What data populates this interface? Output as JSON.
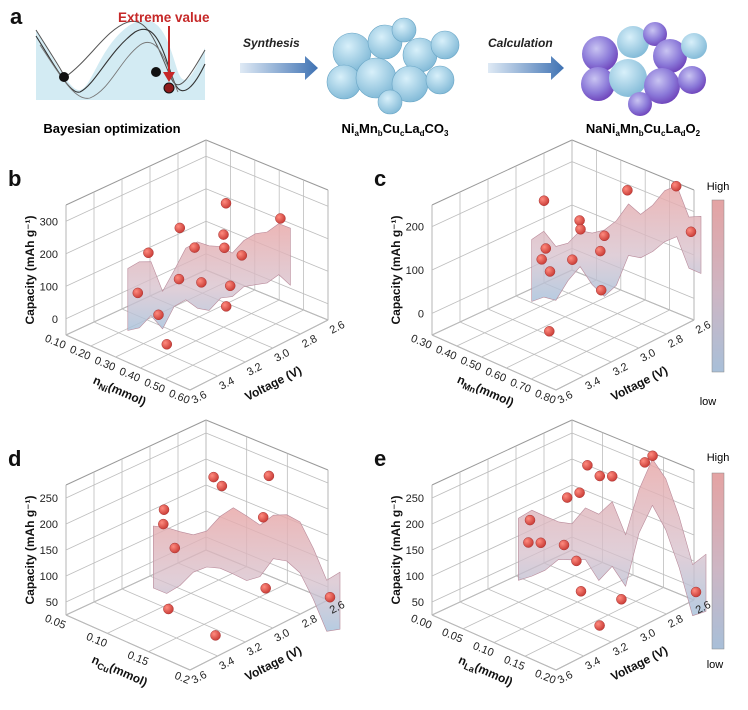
{
  "panel_a": {
    "label": "a",
    "extreme_label": "Extreme value",
    "steps": [
      {
        "arrow_label": "Synthesis",
        "caption_parts": [
          {
            "t": "Ni",
            "sub": false
          },
          {
            "t": "a",
            "sub": true
          },
          {
            "t": "Mn",
            "sub": false
          },
          {
            "t": "b",
            "sub": true
          },
          {
            "t": "Cu",
            "sub": false
          },
          {
            "t": "c",
            "sub": true
          },
          {
            "t": "La",
            "sub": false
          },
          {
            "t": "d",
            "sub": true
          },
          {
            "t": "CO",
            "sub": false
          },
          {
            "t": "3",
            "sub": true
          }
        ]
      },
      {
        "arrow_label": "Calculation",
        "caption_parts": [
          {
            "t": "NaNi",
            "sub": false
          },
          {
            "t": "a",
            "sub": true
          },
          {
            "t": "Mn",
            "sub": false
          },
          {
            "t": "b",
            "sub": true
          },
          {
            "t": "Cu",
            "sub": false
          },
          {
            "t": "c",
            "sub": true
          },
          {
            "t": "La",
            "sub": false
          },
          {
            "t": "d",
            "sub": true
          },
          {
            "t": "O",
            "sub": false
          },
          {
            "t": "2",
            "sub": true
          }
        ]
      }
    ],
    "caption_bayes": "Bayesian optimization",
    "colors": {
      "extreme": "#c62828",
      "arrow": "#4a78b5",
      "curve_fill": "#cfe9f2",
      "particle_blue": "#a9d6ea",
      "particle_purple": "#8a6fd6"
    }
  },
  "colorbar": {
    "top_label": "High",
    "bottom_label": "low",
    "high_color": "#e8a7a7",
    "low_color": "#a9bfd9"
  },
  "chart_data": [
    {
      "panel": "b",
      "type": "scatter3d_surface",
      "ylabel": "Capacity (mAh g⁻¹)",
      "xlabel": "nₙᵢ(mmol)",
      "xlabel_parts": [
        {
          "t": "n",
          "sub": false
        },
        {
          "t": "Ni",
          "sub": true
        },
        {
          "t": "(mmol)",
          "sub": false
        }
      ],
      "zlabel": "Voltage (V)",
      "x_ticks": [
        "0.10",
        "0.20",
        "0.30",
        "0.40",
        "0.50",
        "0.60"
      ],
      "z_ticks": [
        "3.6",
        "3.4",
        "3.2",
        "3.0",
        "2.8",
        "2.6"
      ],
      "y_ticks": [
        "300",
        "200",
        "100",
        "0"
      ],
      "x_range": [
        0.1,
        0.6
      ],
      "z_range": [
        3.6,
        2.6
      ],
      "y_range": [
        -50,
        350
      ],
      "points": [
        {
          "x": 0.15,
          "z": 3.1,
          "y": 120
        },
        {
          "x": 0.22,
          "z": 3.0,
          "y": 200
        },
        {
          "x": 0.28,
          "z": 3.0,
          "y": 160
        },
        {
          "x": 0.22,
          "z": 3.3,
          "y": 60
        },
        {
          "x": 0.35,
          "z": 2.9,
          "y": 300
        },
        {
          "x": 0.34,
          "z": 2.9,
          "y": 200
        },
        {
          "x": 0.4,
          "z": 3.0,
          "y": 200
        },
        {
          "x": 0.33,
          "z": 3.2,
          "y": 120
        },
        {
          "x": 0.42,
          "z": 3.2,
          "y": 140
        },
        {
          "x": 0.36,
          "z": 3.4,
          "y": 60
        },
        {
          "x": 0.48,
          "z": 3.1,
          "y": 130
        },
        {
          "x": 0.47,
          "z": 3.0,
          "y": 200
        },
        {
          "x": 0.52,
          "z": 3.2,
          "y": 100
        },
        {
          "x": 0.45,
          "z": 3.5,
          "y": 20
        },
        {
          "x": 0.4,
          "z": 2.6,
          "y": 210
        }
      ]
    },
    {
      "panel": "c",
      "type": "scatter3d_surface",
      "ylabel": "Capacity (mAh g⁻¹)",
      "xlabel_parts": [
        {
          "t": "n",
          "sub": false
        },
        {
          "t": "Mn",
          "sub": true
        },
        {
          "t": "(mmol)",
          "sub": false
        }
      ],
      "zlabel": "Voltage (V)",
      "x_ticks": [
        "0.30",
        "0.40",
        "0.50",
        "0.60",
        "0.70",
        "0.80"
      ],
      "z_ticks": [
        "3.6",
        "3.4",
        "3.2",
        "3.0",
        "2.8",
        "2.6"
      ],
      "y_ticks": [
        "200",
        "100",
        "0"
      ],
      "x_range": [
        0.3,
        0.8
      ],
      "z_range": [
        3.6,
        2.6
      ],
      "y_range": [
        -50,
        250
      ],
      "points": [
        {
          "x": 0.3,
          "z": 2.8,
          "y": 140
        },
        {
          "x": 0.42,
          "z": 3.0,
          "y": 90
        },
        {
          "x": 0.46,
          "z": 3.1,
          "y": 90
        },
        {
          "x": 0.5,
          "z": 2.9,
          "y": 160
        },
        {
          "x": 0.58,
          "z": 2.7,
          "y": 220
        },
        {
          "x": 0.56,
          "z": 3.0,
          "y": 170
        },
        {
          "x": 0.6,
          "z": 2.9,
          "y": 150
        },
        {
          "x": 0.64,
          "z": 3.0,
          "y": 140
        },
        {
          "x": 0.55,
          "z": 3.2,
          "y": 100
        },
        {
          "x": 0.64,
          "z": 3.2,
          "y": 150
        },
        {
          "x": 0.7,
          "z": 3.1,
          "y": 80
        },
        {
          "x": 0.66,
          "z": 3.4,
          "y": 20
        },
        {
          "x": 0.72,
          "z": 2.6,
          "y": 250
        },
        {
          "x": 0.78,
          "z": 2.6,
          "y": 160
        }
      ]
    },
    {
      "panel": "d",
      "type": "scatter3d_surface",
      "ylabel": "Capacity (mAh g⁻¹)",
      "xlabel_parts": [
        {
          "t": "n",
          "sub": false
        },
        {
          "t": "Cu",
          "sub": true
        },
        {
          "t": "(mmol)",
          "sub": false
        }
      ],
      "zlabel": "Voltage (V)",
      "x_ticks": [
        "0.05",
        "0.10",
        "0.15",
        "0.2"
      ],
      "z_ticks": [
        "3.6",
        "3.4",
        "3.2",
        "3.0",
        "2.8",
        "2.6"
      ],
      "y_ticks": [
        "250",
        "200",
        "150",
        "100",
        "50"
      ],
      "x_range": [
        0.05,
        0.2
      ],
      "z_range": [
        3.6,
        2.6
      ],
      "y_range": [
        25,
        275
      ],
      "points": [
        {
          "x": 0.05,
          "z": 2.9,
          "y": 140
        },
        {
          "x": 0.08,
          "z": 3.0,
          "y": 100
        },
        {
          "x": 0.11,
          "z": 2.9,
          "y": 245
        },
        {
          "x": 0.12,
          "z": 2.9,
          "y": 235
        },
        {
          "x": 0.1,
          "z": 3.2,
          "y": 185
        },
        {
          "x": 0.14,
          "z": 3.4,
          "y": 75
        },
        {
          "x": 0.16,
          "z": 2.8,
          "y": 270
        },
        {
          "x": 0.17,
          "z": 2.9,
          "y": 210
        },
        {
          "x": 0.18,
          "z": 3.3,
          "y": 40
        },
        {
          "x": 0.19,
          "z": 3.0,
          "y": 100
        },
        {
          "x": 0.2,
          "z": 2.6,
          "y": 40
        }
      ]
    },
    {
      "panel": "e",
      "type": "scatter3d_surface",
      "ylabel": "Capacity (mAh g⁻¹)",
      "xlabel_parts": [
        {
          "t": "n",
          "sub": false
        },
        {
          "t": "La",
          "sub": true
        },
        {
          "t": "(mmol)",
          "sub": false
        }
      ],
      "zlabel": "Voltage (V)",
      "x_ticks": [
        "0.00",
        "0.05",
        "0.10",
        "0.15",
        "0.20"
      ],
      "z_ticks": [
        "3.6",
        "3.4",
        "3.2",
        "3.0",
        "2.8",
        "2.6"
      ],
      "y_ticks": [
        "250",
        "200",
        "150",
        "100",
        "50"
      ],
      "x_range": [
        0.0,
        0.2
      ],
      "z_range": [
        3.6,
        2.6
      ],
      "y_range": [
        25,
        275
      ],
      "points": [
        {
          "x": 0.0,
          "z": 2.9,
          "y": 120
        },
        {
          "x": 0.02,
          "z": 3.0,
          "y": 100
        },
        {
          "x": 0.04,
          "z": 3.0,
          "y": 110
        },
        {
          "x": 0.06,
          "z": 2.9,
          "y": 195
        },
        {
          "x": 0.07,
          "z": 2.8,
          "y": 250
        },
        {
          "x": 0.09,
          "z": 2.8,
          "y": 240
        },
        {
          "x": 0.08,
          "z": 2.9,
          "y": 215
        },
        {
          "x": 0.11,
          "z": 2.8,
          "y": 250
        },
        {
          "x": 0.1,
          "z": 3.1,
          "y": 150
        },
        {
          "x": 0.12,
          "z": 3.1,
          "y": 130
        },
        {
          "x": 0.13,
          "z": 2.6,
          "y": 275
        },
        {
          "x": 0.15,
          "z": 3.2,
          "y": 100
        },
        {
          "x": 0.17,
          "z": 3.0,
          "y": 70
        },
        {
          "x": 0.18,
          "z": 3.2,
          "y": 50
        },
        {
          "x": 0.2,
          "z": 2.6,
          "y": 50
        },
        {
          "x": 0.14,
          "z": 2.7,
          "y": 280
        }
      ]
    }
  ]
}
